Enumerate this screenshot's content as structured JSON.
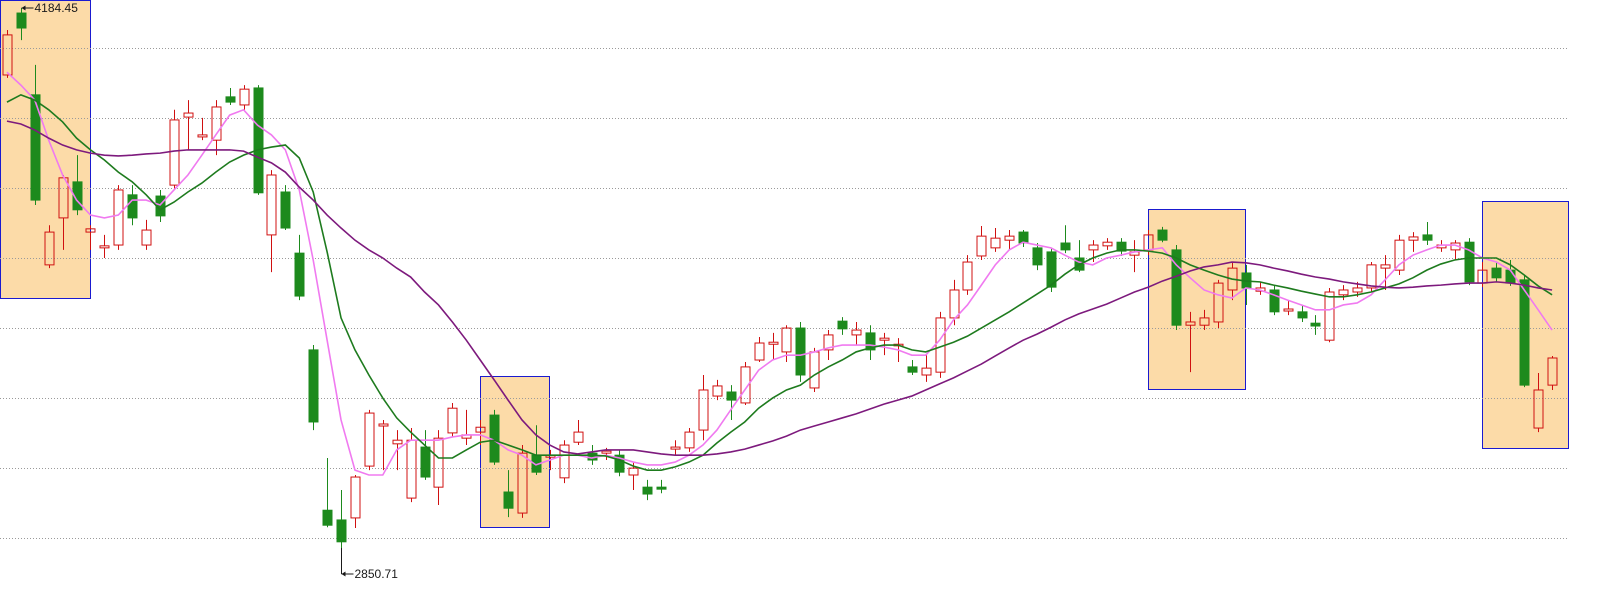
{
  "chart_data": {
    "type": "candlestick",
    "up_color": "#d01010",
    "down_color": "#1d8a1d",
    "grid": true,
    "ylim": [
      2729.7,
      4204.2
    ],
    "yticks": [
      2875.3,
      3048.2,
      3221.1,
      3394.1,
      3567.0,
      3739.8,
      3912.7,
      4085.6
    ],
    "open": [
      4019,
      4172,
      3970,
      3550,
      3666,
      3755,
      3631,
      3592,
      3599,
      3723,
      3599,
      3720,
      3747,
      3915,
      3866,
      3858,
      3965,
      3945,
      3987,
      3624,
      3730,
      3579,
      3340,
      2944,
      2920,
      2925,
      3053,
      3152,
      3108,
      2974,
      3100,
      3001,
      3135,
      3122,
      3137,
      3179,
      2989,
      2937,
      3080,
      3075,
      3024,
      3112,
      3085,
      3085,
      3080,
      3031,
      3001,
      3001,
      3095,
      3098,
      3142,
      3226,
      3236,
      3209,
      3315,
      3354,
      3335,
      3394,
      3246,
      3340,
      3411,
      3377,
      3382,
      3364,
      3350,
      3298,
      3278,
      3285,
      3419,
      3488,
      3572,
      3592,
      3611,
      3631,
      3592,
      3582,
      3604,
      3567,
      3587,
      3597,
      3606,
      3574,
      3587,
      3636,
      3587,
      3401,
      3401,
      3409,
      3488,
      3530,
      3485,
      3488,
      3436,
      3434,
      3406,
      3364,
      3476,
      3483,
      3493,
      3542,
      3537,
      3611,
      3624,
      3592,
      3587,
      3606,
      3505,
      3542,
      3537,
      3513,
      3147,
      3253
    ],
    "high": [
      4130,
      4184.45,
      4044,
      3648,
      3772,
      3821,
      3648,
      3624,
      3747,
      3747,
      3661,
      3735,
      3933,
      3957,
      3913,
      3957,
      3987,
      3994,
      3994,
      3784,
      3747,
      3624,
      3352,
      3073,
      2994,
      3031,
      3192,
      3167,
      3142,
      3147,
      3142,
      3142,
      3209,
      3192,
      3167,
      3192,
      3043,
      3105,
      3154,
      3093,
      3117,
      3167,
      3105,
      3098,
      3093,
      3063,
      3019,
      3019,
      3117,
      3147,
      3278,
      3266,
      3253,
      3310,
      3372,
      3382,
      3401,
      3409,
      3345,
      3389,
      3421,
      3409,
      3401,
      3382,
      3369,
      3315,
      3327,
      3434,
      3513,
      3574,
      3646,
      3641,
      3636,
      3636,
      3604,
      3592,
      3648,
      3611,
      3611,
      3616,
      3616,
      3611,
      3636,
      3644,
      3599,
      3434,
      3439,
      3513,
      3557,
      3550,
      3508,
      3500,
      3463,
      3451,
      3426,
      3493,
      3500,
      3508,
      3557,
      3574,
      3624,
      3631,
      3656,
      3611,
      3611,
      3616,
      3557,
      3557,
      3562,
      3525,
      3283,
      3325
    ],
    "low": [
      4012,
      4105,
      3698,
      3542,
      3587,
      3673,
      3587,
      3567,
      3587,
      3648,
      3587,
      3656,
      3735,
      3834,
      3858,
      3821,
      3945,
      3933,
      3723,
      3532,
      3636,
      3463,
      3142,
      2902,
      2850.71,
      2900,
      3043,
      3043,
      3043,
      2964,
      3019,
      2957,
      3125,
      3105,
      3105,
      3056,
      2927,
      2925,
      3031,
      3043,
      3011,
      3105,
      3056,
      3068,
      3028,
      2994,
      2969,
      2986,
      3080,
      3088,
      3117,
      3216,
      3167,
      3204,
      3310,
      3315,
      3310,
      3261,
      3236,
      3315,
      3377,
      3352,
      3315,
      3327,
      3310,
      3278,
      3261,
      3271,
      3401,
      3476,
      3562,
      3582,
      3587,
      3594,
      3537,
      3483,
      3579,
      3532,
      3557,
      3587,
      3572,
      3532,
      3574,
      3606,
      3389,
      3285,
      3389,
      3394,
      3463,
      3451,
      3476,
      3426,
      3426,
      3409,
      3377,
      3359,
      3463,
      3471,
      3483,
      3488,
      3525,
      3582,
      3599,
      3582,
      3562,
      3500,
      3495,
      3508,
      3498,
      3248,
      3137,
      3241
    ],
    "close": [
      4118,
      4135,
      3710,
      3631,
      3765,
      3686,
      3639,
      3597,
      3735,
      3666,
      3636,
      3671,
      3908,
      3925,
      3871,
      3940,
      3952,
      3984,
      3728,
      3772,
      3641,
      3473,
      3162,
      2907,
      2866,
      3026,
      3184,
      3157,
      3117,
      3117,
      3026,
      3122,
      3196,
      3130,
      3149,
      3063,
      2949,
      3085,
      3038,
      3080,
      3105,
      3137,
      3068,
      3090,
      3038,
      3048,
      2984,
      2996,
      3100,
      3137,
      3241,
      3251,
      3216,
      3298,
      3357,
      3359,
      3394,
      3278,
      3335,
      3377,
      3392,
      3389,
      3340,
      3369,
      3354,
      3285,
      3295,
      3419,
      3488,
      3557,
      3621,
      3616,
      3621,
      3604,
      3550,
      3495,
      3587,
      3537,
      3599,
      3606,
      3584,
      3582,
      3624,
      3611,
      3401,
      3409,
      3419,
      3505,
      3542,
      3493,
      3493,
      3434,
      3441,
      3419,
      3399,
      3483,
      3488,
      3493,
      3550,
      3550,
      3611,
      3619,
      3611,
      3599,
      3604,
      3508,
      3537,
      3518,
      3505,
      3253,
      3241,
      3320
    ],
    "lines": [
      {
        "color": "#f07af0",
        "values": [
          4026,
          3994,
          3957,
          3858,
          3772,
          3710,
          3673,
          3666,
          3673,
          3710,
          3710,
          3698,
          3735,
          3772,
          3821,
          3871,
          3920,
          3933,
          3895,
          3871,
          3834,
          3735,
          3562,
          3364,
          3167,
          3043,
          3031,
          3031,
          3093,
          3117,
          3117,
          3117,
          3125,
          3130,
          3130,
          3117,
          3093,
          3080,
          3056,
          3068,
          3080,
          3080,
          3073,
          3080,
          3073,
          3063,
          3056,
          3056,
          3063,
          3080,
          3105,
          3142,
          3192,
          3241,
          3290,
          3315,
          3327,
          3327,
          3335,
          3345,
          3352,
          3352,
          3352,
          3347,
          3340,
          3327,
          3327,
          3364,
          3414,
          3451,
          3500,
          3550,
          3587,
          3606,
          3599,
          3592,
          3574,
          3557,
          3550,
          3567,
          3574,
          3582,
          3587,
          3592,
          3550,
          3518,
          3488,
          3476,
          3468,
          3493,
          3488,
          3476,
          3463,
          3451,
          3439,
          3439,
          3451,
          3456,
          3476,
          3513,
          3550,
          3574,
          3587,
          3599,
          3599,
          3587,
          3567,
          3557,
          3537,
          3488,
          3439,
          3389
        ]
      },
      {
        "color": "#1e7b1e",
        "values": [
          3952,
          3970,
          3957,
          3933,
          3903,
          3863,
          3834,
          3809,
          3779,
          3755,
          3723,
          3686,
          3705,
          3730,
          3752,
          3779,
          3804,
          3821,
          3834,
          3841,
          3846,
          3814,
          3730,
          3582,
          3419,
          3340,
          3278,
          3221,
          3172,
          3137,
          3105,
          3073,
          3073,
          3093,
          3112,
          3117,
          3105,
          3093,
          3080,
          3080,
          3080,
          3080,
          3080,
          3078,
          3068,
          3053,
          3043,
          3043,
          3051,
          3063,
          3080,
          3110,
          3137,
          3162,
          3196,
          3221,
          3241,
          3253,
          3278,
          3298,
          3315,
          3335,
          3345,
          3352,
          3352,
          3340,
          3335,
          3347,
          3359,
          3374,
          3394,
          3414,
          3434,
          3456,
          3478,
          3500,
          3527,
          3550,
          3567,
          3579,
          3587,
          3587,
          3584,
          3579,
          3567,
          3550,
          3537,
          3525,
          3515,
          3510,
          3508,
          3500,
          3493,
          3485,
          3478,
          3471,
          3471,
          3476,
          3483,
          3493,
          3503,
          3518,
          3537,
          3552,
          3562,
          3567,
          3567,
          3567,
          3550,
          3525,
          3498,
          3476
        ]
      },
      {
        "color": "#7d1a7d",
        "values": [
          3905,
          3898,
          3883,
          3863,
          3846,
          3834,
          3826,
          3821,
          3819,
          3821,
          3824,
          3826,
          3831,
          3834,
          3834,
          3834,
          3834,
          3831,
          3816,
          3802,
          3779,
          3742,
          3710,
          3673,
          3641,
          3611,
          3587,
          3567,
          3542,
          3520,
          3483,
          3451,
          3409,
          3364,
          3315,
          3266,
          3216,
          3167,
          3130,
          3105,
          3088,
          3083,
          3088,
          3093,
          3093,
          3093,
          3088,
          3083,
          3080,
          3080,
          3080,
          3083,
          3088,
          3095,
          3105,
          3115,
          3127,
          3142,
          3152,
          3162,
          3172,
          3182,
          3194,
          3206,
          3216,
          3226,
          3241,
          3256,
          3271,
          3288,
          3305,
          3325,
          3345,
          3364,
          3379,
          3396,
          3414,
          3429,
          3441,
          3453,
          3468,
          3483,
          3495,
          3510,
          3522,
          3535,
          3545,
          3550,
          3557,
          3555,
          3550,
          3542,
          3535,
          3527,
          3520,
          3515,
          3508,
          3503,
          3498,
          3495,
          3493,
          3495,
          3498,
          3500,
          3503,
          3505,
          3505,
          3508,
          3505,
          3500,
          3493,
          3488
        ]
      }
    ]
  }
}
